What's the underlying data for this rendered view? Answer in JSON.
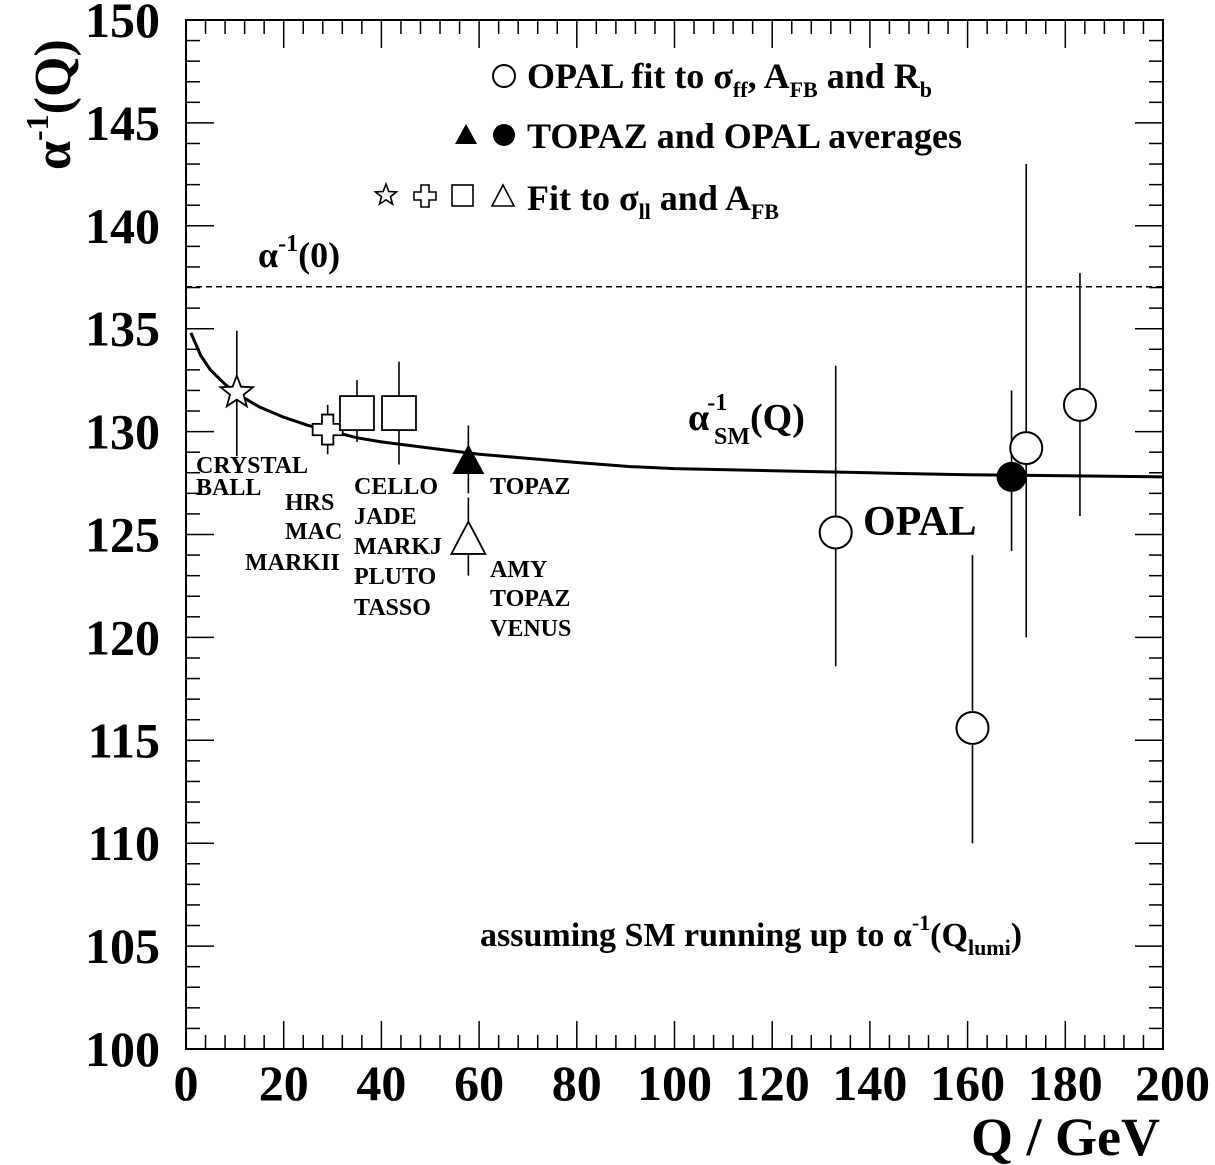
{
  "chart_data": {
    "type": "scatter",
    "xlabel": "Q / GeV",
    "ylabel_main": "α",
    "ylabel_sup": "-1",
    "ylabel_tail": "(Q)",
    "xlim": [
      0,
      200
    ],
    "ylim": [
      100,
      150
    ],
    "x_ticks": [
      "0",
      "20",
      "40",
      "60",
      "80",
      "100",
      "120",
      "140",
      "160",
      "180",
      "200"
    ],
    "y_ticks": [
      "100",
      "105",
      "110",
      "115",
      "120",
      "125",
      "130",
      "135",
      "140",
      "145",
      "150"
    ],
    "grid": false,
    "reference_line": {
      "y": 137.04,
      "style": "dashed",
      "label_main": "α",
      "label_sup": "-1",
      "label_tail": "(0)"
    },
    "sm_curve": {
      "label_main": "α",
      "label_sup": "-1",
      "label_sub": "SM",
      "label_tail": "(Q)",
      "x": [
        1,
        3,
        5,
        8,
        10,
        15,
        20,
        25,
        30,
        35,
        40,
        50,
        60,
        70,
        80,
        91,
        100,
        120,
        140,
        160,
        180,
        200
      ],
      "y": [
        134.8,
        133.7,
        133.0,
        132.3,
        131.9,
        131.2,
        130.7,
        130.3,
        130.0,
        129.7,
        129.5,
        129.2,
        128.9,
        128.7,
        128.5,
        128.3,
        128.2,
        128.1,
        128.0,
        127.9,
        127.85,
        127.8
      ]
    },
    "series": [
      {
        "name": "OPAL fit",
        "marker": "open-circle",
        "points": [
          {
            "x": 133,
            "y": 125.1,
            "ylo": 118.6,
            "yhi": 133.2
          },
          {
            "x": 161,
            "y": 115.6,
            "ylo": 110.0,
            "yhi": 124.0
          },
          {
            "x": 172,
            "y": 129.2,
            "ylo": 120.0,
            "yhi": 143.0
          },
          {
            "x": 183,
            "y": 131.3,
            "ylo": 125.9,
            "yhi": 137.7
          }
        ]
      },
      {
        "name": "OPAL average",
        "marker": "filled-circle",
        "points": [
          {
            "x": 169,
            "y": 127.8,
            "ylo": 124.2,
            "yhi": 132.0
          }
        ]
      },
      {
        "name": "TOPAZ average",
        "marker": "filled-triangle",
        "points": [
          {
            "x": 57.8,
            "y": 128.6,
            "ylo": 127.0,
            "yhi": 130.3
          }
        ]
      },
      {
        "name": "Fit star",
        "marker": "open-star",
        "points": [
          {
            "x": 10.4,
            "y": 131.9,
            "ylo": 128.8,
            "yhi": 134.9
          }
        ]
      },
      {
        "name": "Fit cross",
        "marker": "open-cross",
        "points": [
          {
            "x": 29,
            "y": 130.1,
            "ylo": 128.9,
            "yhi": 131.3
          }
        ]
      },
      {
        "name": "Fit squares",
        "marker": "open-square",
        "points": [
          {
            "x": 35,
            "y": 130.9,
            "ylo": 129.5,
            "yhi": 132.5
          },
          {
            "x": 43.6,
            "y": 130.9,
            "ylo": 128.4,
            "yhi": 133.4
          }
        ]
      },
      {
        "name": "Fit triangle",
        "marker": "open-triangle",
        "points": [
          {
            "x": 57.8,
            "y": 124.8,
            "ylo": 123.0,
            "yhi": 126.8
          }
        ]
      }
    ],
    "legend": {
      "placement": "top-right",
      "row1": {
        "pre": "OPAL fit to σ",
        "sub1": "ff",
        "mid1": ", A",
        "sub2": "FB",
        "mid2": " and R",
        "sub3": "b"
      },
      "row2": {
        "text": "TOPAZ and OPAL averages"
      },
      "row3": {
        "pre": "Fit to σ",
        "sub1": "ll",
        "mid1": " and A",
        "sub2": "FB"
      }
    },
    "annotations": {
      "crystal": "CRYSTAL",
      "ball": "BALL",
      "hrs": "HRS",
      "mac": "MAC",
      "markii": "MARKII",
      "cello": "CELLO",
      "jade": "JADE",
      "markj": "MARKJ",
      "pluto": "PLUTO",
      "tasso": "TASSO",
      "topaz1": "TOPAZ",
      "amy": "AMY",
      "topaz2": "TOPAZ",
      "venus": "VENUS",
      "opal": "OPAL",
      "footnote_pre": "assuming SM running up to α",
      "footnote_sup": "-1",
      "footnote_mid": "(Q",
      "footnote_sub": "lumi",
      "footnote_tail": ")"
    }
  }
}
